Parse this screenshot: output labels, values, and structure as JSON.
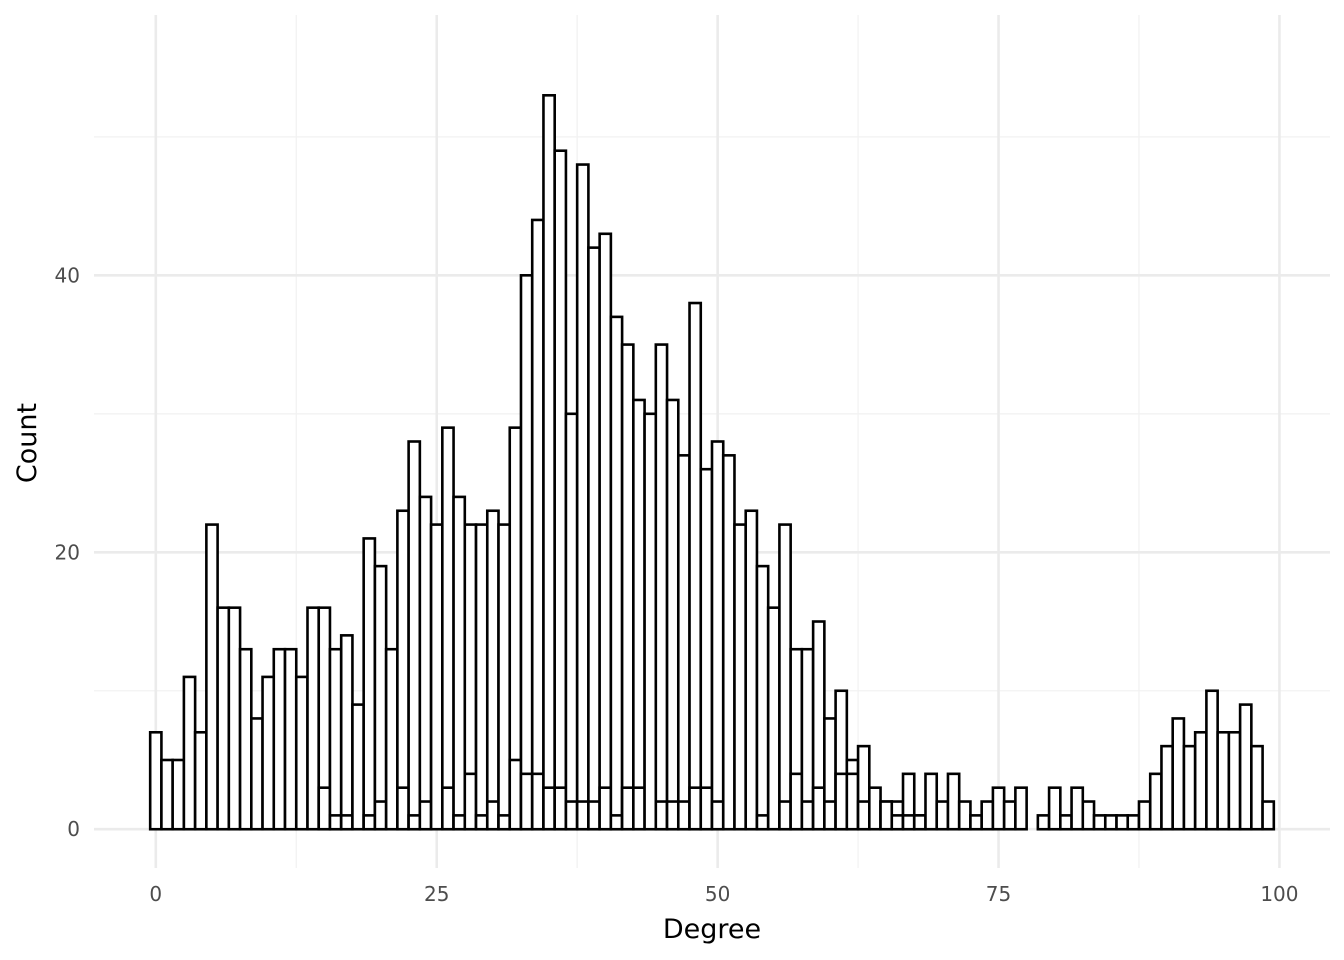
{
  "chart_data": {
    "type": "bar",
    "subtype": "histogram",
    "xlabel": "Degree",
    "ylabel": "Count",
    "xlim": [
      -5.5,
      104.5
    ],
    "ylim": [
      -2.8,
      58.8
    ],
    "x_ticks": [
      0,
      25,
      50,
      75,
      100
    ],
    "x_tick_labels": [
      "0",
      "25",
      "50",
      "75",
      "100"
    ],
    "y_ticks": [
      0,
      20,
      40
    ],
    "y_tick_labels": [
      "0",
      "20",
      "40"
    ],
    "y_minor_ticks": [
      10,
      30,
      50
    ],
    "bin_width": 1,
    "grid": true,
    "legend": "none",
    "fill_color": "#ffffff",
    "outline_color": "#000000",
    "grid_major_color": "#ebebeb",
    "grid_minor_color": "#f2f2f2",
    "bars": [
      {
        "x": 0,
        "values": [
          7
        ]
      },
      {
        "x": 1,
        "values": [
          5
        ]
      },
      {
        "x": 2,
        "values": [
          5
        ]
      },
      {
        "x": 3,
        "values": [
          11
        ]
      },
      {
        "x": 4,
        "values": [
          7
        ]
      },
      {
        "x": 5,
        "values": [
          22
        ]
      },
      {
        "x": 6,
        "values": [
          16
        ]
      },
      {
        "x": 7,
        "values": [
          16
        ]
      },
      {
        "x": 8,
        "values": [
          13
        ]
      },
      {
        "x": 9,
        "values": [
          8
        ]
      },
      {
        "x": 10,
        "values": [
          11
        ]
      },
      {
        "x": 11,
        "values": [
          13
        ]
      },
      {
        "x": 12,
        "values": [
          13
        ]
      },
      {
        "x": 13,
        "values": [
          11
        ]
      },
      {
        "x": 14,
        "values": [
          16
        ]
      },
      {
        "x": 15,
        "values": [
          3,
          16
        ]
      },
      {
        "x": 16,
        "values": [
          1,
          13
        ]
      },
      {
        "x": 17,
        "values": [
          1,
          14
        ]
      },
      {
        "x": 18,
        "values": [
          9
        ]
      },
      {
        "x": 19,
        "values": [
          1,
          21
        ]
      },
      {
        "x": 20,
        "values": [
          2,
          19
        ]
      },
      {
        "x": 21,
        "values": [
          13
        ]
      },
      {
        "x": 22,
        "values": [
          3,
          23
        ]
      },
      {
        "x": 23,
        "values": [
          1,
          28
        ]
      },
      {
        "x": 24,
        "values": [
          2,
          24
        ]
      },
      {
        "x": 25,
        "values": [
          22
        ]
      },
      {
        "x": 26,
        "values": [
          3,
          29
        ]
      },
      {
        "x": 27,
        "values": [
          1,
          24
        ]
      },
      {
        "x": 28,
        "values": [
          4,
          22
        ]
      },
      {
        "x": 29,
        "values": [
          1,
          22
        ]
      },
      {
        "x": 30,
        "values": [
          2,
          23
        ]
      },
      {
        "x": 31,
        "values": [
          1,
          22
        ]
      },
      {
        "x": 32,
        "values": [
          5,
          29
        ]
      },
      {
        "x": 33,
        "values": [
          4,
          40
        ]
      },
      {
        "x": 34,
        "values": [
          4,
          44
        ]
      },
      {
        "x": 35,
        "values": [
          3,
          53
        ]
      },
      {
        "x": 36,
        "values": [
          3,
          49
        ]
      },
      {
        "x": 37,
        "values": [
          2,
          30
        ]
      },
      {
        "x": 38,
        "values": [
          2,
          48
        ]
      },
      {
        "x": 39,
        "values": [
          2,
          42
        ]
      },
      {
        "x": 40,
        "values": [
          3,
          43
        ]
      },
      {
        "x": 41,
        "values": [
          1,
          37
        ]
      },
      {
        "x": 42,
        "values": [
          3,
          35
        ]
      },
      {
        "x": 43,
        "values": [
          3,
          31
        ]
      },
      {
        "x": 44,
        "values": [
          30
        ]
      },
      {
        "x": 45,
        "values": [
          2,
          35
        ]
      },
      {
        "x": 46,
        "values": [
          2,
          31
        ]
      },
      {
        "x": 47,
        "values": [
          2,
          27
        ]
      },
      {
        "x": 48,
        "values": [
          3,
          38
        ]
      },
      {
        "x": 49,
        "values": [
          3,
          26
        ]
      },
      {
        "x": 50,
        "values": [
          2,
          28
        ]
      },
      {
        "x": 51,
        "values": [
          27
        ]
      },
      {
        "x": 52,
        "values": [
          22
        ]
      },
      {
        "x": 53,
        "values": [
          23
        ]
      },
      {
        "x": 54,
        "values": [
          1,
          19
        ]
      },
      {
        "x": 55,
        "values": [
          16
        ]
      },
      {
        "x": 56,
        "values": [
          22,
          2
        ]
      },
      {
        "x": 57,
        "values": [
          13,
          4
        ]
      },
      {
        "x": 58,
        "values": [
          13,
          2
        ]
      },
      {
        "x": 59,
        "values": [
          15,
          3
        ]
      },
      {
        "x": 60,
        "values": [
          8,
          2
        ]
      },
      {
        "x": 61,
        "values": [
          10,
          4
        ]
      },
      {
        "x": 62,
        "values": [
          4,
          5
        ]
      },
      {
        "x": 63,
        "values": [
          6,
          2
        ]
      },
      {
        "x": 64,
        "values": [
          3
        ]
      },
      {
        "x": 65,
        "values": [
          2,
          2
        ]
      },
      {
        "x": 66,
        "values": [
          2,
          1
        ]
      },
      {
        "x": 67,
        "values": [
          1,
          4
        ]
      },
      {
        "x": 68,
        "values": [
          1,
          1
        ]
      },
      {
        "x": 69,
        "values": [
          4
        ]
      },
      {
        "x": 70,
        "values": [
          2
        ]
      },
      {
        "x": 71,
        "values": [
          4
        ]
      },
      {
        "x": 72,
        "values": [
          2
        ]
      },
      {
        "x": 73,
        "values": [
          1
        ]
      },
      {
        "x": 74,
        "values": [
          2
        ]
      },
      {
        "x": 75,
        "values": [
          3
        ]
      },
      {
        "x": 76,
        "values": [
          2
        ]
      },
      {
        "x": 77,
        "values": [
          3
        ]
      },
      {
        "x": 79,
        "values": [
          1
        ]
      },
      {
        "x": 80,
        "values": [
          3
        ]
      },
      {
        "x": 81,
        "values": [
          1
        ]
      },
      {
        "x": 82,
        "values": [
          3
        ]
      },
      {
        "x": 83,
        "values": [
          2
        ]
      },
      {
        "x": 84,
        "values": [
          1
        ]
      },
      {
        "x": 85,
        "values": [
          1
        ]
      },
      {
        "x": 86,
        "values": [
          1
        ]
      },
      {
        "x": 87,
        "values": [
          1
        ]
      },
      {
        "x": 88,
        "values": [
          2
        ]
      },
      {
        "x": 89,
        "values": [
          4
        ]
      },
      {
        "x": 90,
        "values": [
          6
        ]
      },
      {
        "x": 91,
        "values": [
          8
        ]
      },
      {
        "x": 92,
        "values": [
          6
        ]
      },
      {
        "x": 93,
        "values": [
          7
        ]
      },
      {
        "x": 94,
        "values": [
          10
        ]
      },
      {
        "x": 95,
        "values": [
          7
        ]
      },
      {
        "x": 96,
        "values": [
          7
        ]
      },
      {
        "x": 97,
        "values": [
          9
        ]
      },
      {
        "x": 98,
        "values": [
          6
        ]
      },
      {
        "x": 99,
        "values": [
          2
        ]
      }
    ]
  }
}
